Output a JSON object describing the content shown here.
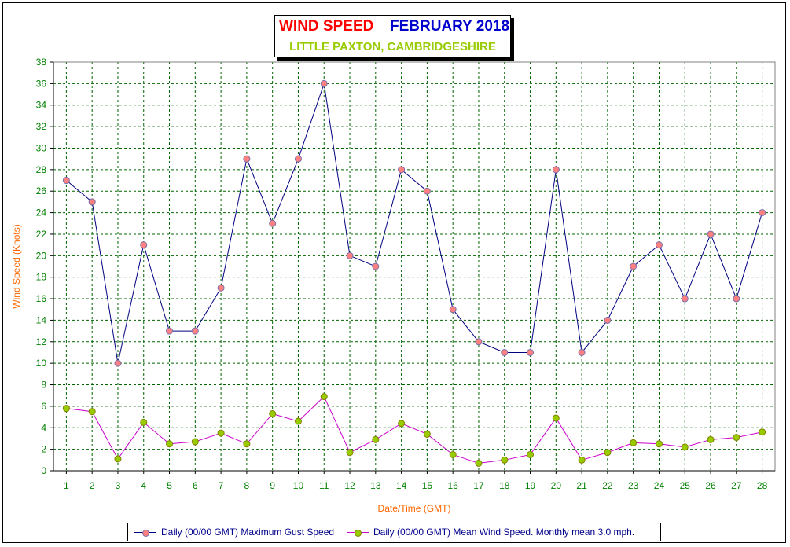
{
  "title": {
    "main": "WIND SPEED",
    "month": "FEBRUARY 2018",
    "location": "LITTLE PAXTON, CAMBRIDGESHIRE"
  },
  "colors": {
    "title_main": "#ff0000",
    "title_month": "#0000cc",
    "title_location": "#99cc00",
    "axis_labels": "#ff6600",
    "tick_labels": "#008000",
    "grid": "#006400",
    "gust_line": "#000080",
    "gust_marker": "#ff8080",
    "mean_line": "#cc00cc",
    "mean_marker": "#99cc00"
  },
  "chart_data": {
    "type": "line",
    "xlabel": "Date/Time (GMT)",
    "ylabel": "Wind Speed (Knots)",
    "ylim": [
      0,
      38
    ],
    "ytick_step": 2,
    "grid": true,
    "legend_position": "bottom",
    "x": [
      1,
      2,
      3,
      4,
      5,
      6,
      7,
      8,
      9,
      10,
      11,
      12,
      13,
      14,
      15,
      16,
      17,
      18,
      19,
      20,
      21,
      22,
      23,
      24,
      25,
      26,
      27,
      28
    ],
    "series": [
      {
        "name": "Daily (00/00 GMT) Maximum Gust Speed",
        "values": [
          27,
          25,
          10,
          21,
          13,
          13,
          17,
          29,
          23,
          29,
          36,
          20,
          19,
          28,
          26,
          15,
          12,
          11,
          11,
          28,
          11,
          14,
          19,
          21,
          16,
          22,
          16,
          24
        ]
      },
      {
        "name": "Daily (00/00 GMT) Mean Wind Speed. Monthly mean 3.0 mph.",
        "values": [
          5.8,
          5.5,
          1.1,
          4.5,
          2.5,
          2.7,
          3.5,
          2.5,
          5.3,
          4.6,
          6.9,
          1.7,
          2.9,
          4.4,
          3.4,
          1.5,
          0.7,
          1.0,
          1.5,
          4.9,
          1.0,
          1.7,
          2.6,
          2.5,
          2.2,
          2.9,
          3.1,
          3.6
        ]
      }
    ]
  }
}
